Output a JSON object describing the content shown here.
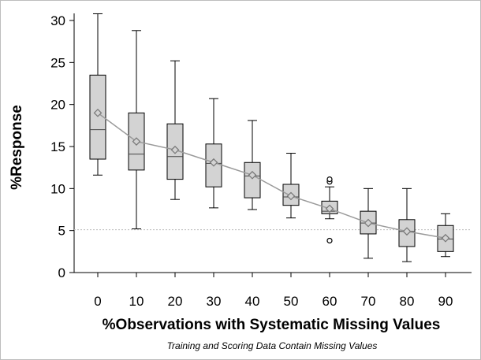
{
  "chart_data": {
    "type": "box",
    "title": "",
    "xlabel": "%Observations with Systematic Missing Values",
    "ylabel": "%Response",
    "footnote": "Training and Scoring Data Contain Missing Values",
    "ylim": [
      0,
      30
    ],
    "yticks": [
      0,
      5,
      10,
      15,
      20,
      25,
      30
    ],
    "reference_line": 5.1,
    "grid": false,
    "colors": {
      "box": "#d3d3d3",
      "edge": "#000000",
      "mean_line": "#9a9a9a",
      "ref_line": "#bbbbbb"
    },
    "categories": [
      "0",
      "10",
      "20",
      "30",
      "40",
      "50",
      "60",
      "70",
      "80",
      "90"
    ],
    "boxes": [
      {
        "x": 0,
        "min": 11.6,
        "q1": 13.5,
        "median": 17.0,
        "q3": 23.5,
        "max": 30.8,
        "mean": 19.0
      },
      {
        "x": 10,
        "min": 5.2,
        "q1": 12.2,
        "median": 14.1,
        "q3": 19.0,
        "max": 28.8,
        "mean": 15.6
      },
      {
        "x": 20,
        "min": 8.7,
        "q1": 11.1,
        "median": 13.8,
        "q3": 17.7,
        "max": 25.2,
        "mean": 14.6
      },
      {
        "x": 30,
        "min": 7.7,
        "q1": 10.2,
        "median": 13.0,
        "q3": 15.3,
        "max": 20.7,
        "mean": 13.1
      },
      {
        "x": 40,
        "min": 7.5,
        "q1": 8.9,
        "median": 11.5,
        "q3": 13.1,
        "max": 18.1,
        "mean": 11.6
      },
      {
        "x": 50,
        "min": 6.5,
        "q1": 8.0,
        "median": 9.0,
        "q3": 10.5,
        "max": 14.2,
        "mean": 9.1
      },
      {
        "x": 60,
        "min": 6.4,
        "q1": 7.0,
        "median": 7.3,
        "q3": 8.5,
        "max": 10.2,
        "mean": 7.6,
        "outliers": [
          3.8,
          10.8,
          11.1
        ]
      },
      {
        "x": 70,
        "min": 1.7,
        "q1": 4.6,
        "median": 5.9,
        "q3": 7.3,
        "max": 10.0,
        "mean": 5.9
      },
      {
        "x": 80,
        "min": 1.3,
        "q1": 3.1,
        "median": 4.9,
        "q3": 6.3,
        "max": 10.0,
        "mean": 4.9
      },
      {
        "x": 90,
        "min": 1.9,
        "q1": 2.5,
        "median": 4.0,
        "q3": 5.6,
        "max": 7.0,
        "mean": 4.1
      }
    ]
  }
}
